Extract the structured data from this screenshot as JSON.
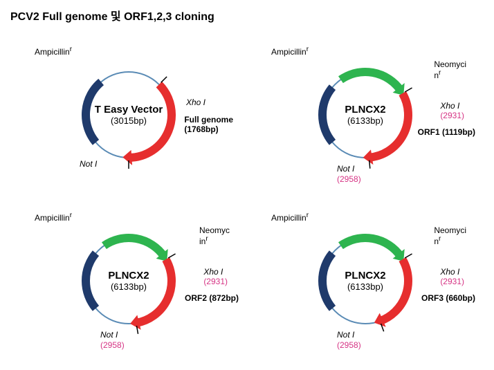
{
  "title": "PCV2 Full genome 및 ORF1,2,3 cloning",
  "colors": {
    "amp": "#1f3a6b",
    "neo": "#2eb44f",
    "insert": "#e62e2e",
    "backbone": "#5a8bb5",
    "pink": "#d63384",
    "text": "#000000",
    "bg": "#ffffff"
  },
  "plasmids": [
    {
      "name": "T Easy Vector",
      "size": "(3015bp)",
      "name_fontsize": 15,
      "has_neo": false,
      "amp_label": "Ampicillin",
      "amp_sup": "r",
      "insert_label": "Full genome",
      "insert_size": "(1768bp)",
      "xho_label": "Xho I",
      "xho_num": "",
      "not_label": "Not I",
      "not_num": "",
      "insert_arc": {
        "start": 45,
        "end": 180
      },
      "amp_arc": {
        "start": 230,
        "end": 320
      }
    },
    {
      "name": "PLNCX2",
      "size": "(6133bp)",
      "name_fontsize": 15,
      "has_neo": true,
      "amp_label": "Ampicillin",
      "amp_sup": "r",
      "neo_label": "Neomyci",
      "neo_label2": "n",
      "neo_sup": "r",
      "insert_label": "ORF1 (1119bp)",
      "insert_size": "",
      "xho_label": "Xho I",
      "xho_num": "(2931)",
      "not_label": "Not I",
      "not_num": "(2958)",
      "insert_arc": {
        "start": 60,
        "end": 175
      },
      "amp_arc": {
        "start": 230,
        "end": 310
      },
      "neo_arc": {
        "start": 325,
        "end": 415
      }
    },
    {
      "name": "PLNCX2",
      "size": "(6133bp)",
      "name_fontsize": 15,
      "has_neo": true,
      "amp_label": "Ampicillin",
      "amp_sup": "r",
      "neo_label": "Neomyc",
      "neo_label2": "in",
      "neo_sup": "r",
      "insert_label": "ORF2 (872bp)",
      "insert_size": "",
      "xho_label": "Xho I",
      "xho_num": "(2931)",
      "not_label": "Not I",
      "not_num": "(2958)",
      "insert_arc": {
        "start": 60,
        "end": 170
      },
      "amp_arc": {
        "start": 230,
        "end": 310
      },
      "neo_arc": {
        "start": 325,
        "end": 415
      }
    },
    {
      "name": "PLNCX2",
      "size": "(6133bp)",
      "name_fontsize": 15,
      "has_neo": true,
      "amp_label": "Ampicillin",
      "amp_sup": "r",
      "neo_label": "Neomyci",
      "neo_label2": "n",
      "neo_sup": "r",
      "insert_label": "ORF3 (660bp)",
      "insert_size": "",
      "xho_label": "Xho I",
      "xho_num": "(2931)",
      "not_label": "Not I",
      "not_num": "(2958)",
      "insert_arc": {
        "start": 60,
        "end": 160
      },
      "amp_arc": {
        "start": 230,
        "end": 310
      },
      "neo_arc": {
        "start": 325,
        "end": 415
      }
    }
  ],
  "layout": {
    "ring_radius": 62,
    "ring_stroke": 2,
    "arc_stroke": 12,
    "svg_size": 200
  }
}
